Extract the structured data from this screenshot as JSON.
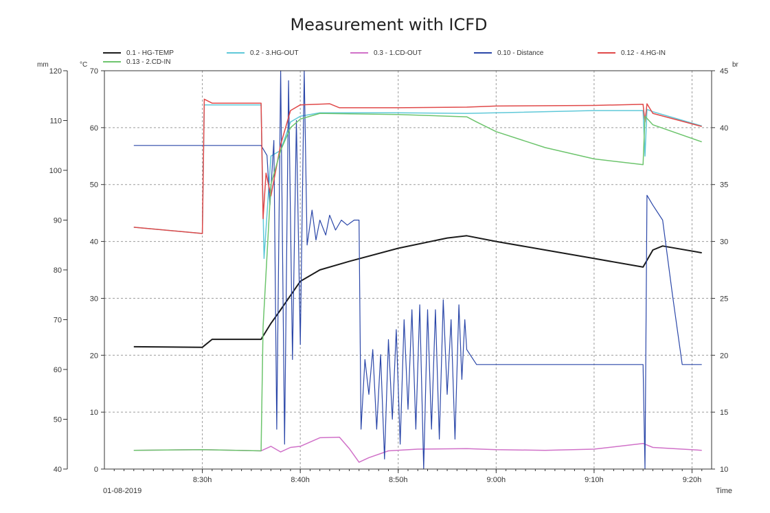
{
  "chart_data": {
    "type": "line",
    "title": "Measurement with ICFD",
    "date_label": "01-08-2019",
    "xlabel": "Time",
    "x_range": [
      "8:20",
      "9:22"
    ],
    "x_ticks": [
      {
        "t": "8:30",
        "label": "8:30h"
      },
      {
        "t": "8:40",
        "label": "8:40h"
      },
      {
        "t": "8:50",
        "label": "8:50h"
      },
      {
        "t": "9:00",
        "label": "9:00h"
      },
      {
        "t": "9:10",
        "label": "9:10h"
      },
      {
        "t": "9:20",
        "label": "9:20h"
      }
    ],
    "axes": {
      "mm": {
        "unit": "mm",
        "ylim": [
          40,
          120
        ],
        "ticks": [
          40,
          50,
          60,
          70,
          80,
          90,
          100,
          110,
          120
        ]
      },
      "degC": {
        "unit": "°C",
        "ylim": [
          0,
          70
        ],
        "ticks": [
          0,
          10,
          20,
          30,
          40,
          50,
          60,
          70
        ]
      },
      "bar": {
        "unit": "br",
        "ylim": [
          10,
          45
        ],
        "ticks": [
          10,
          15,
          20,
          25,
          30,
          35,
          40,
          45
        ]
      }
    },
    "grid": true,
    "legend_position": "top",
    "series": [
      {
        "name": "0.1 - HG-TEMP",
        "color": "#1a1a1a",
        "axis": "degC",
        "width": 2,
        "points": [
          [
            "8:23",
            21.5
          ],
          [
            "8:30",
            21.4
          ],
          [
            "8:31",
            22.8
          ],
          [
            "8:36",
            22.8
          ],
          [
            "8:37",
            25.6
          ],
          [
            "8:38",
            28
          ],
          [
            "8:39",
            30.5
          ],
          [
            "8:40",
            33
          ],
          [
            "8:42",
            35
          ],
          [
            "8:45",
            36.5
          ],
          [
            "8:50",
            38.8
          ],
          [
            "8:55",
            40.6
          ],
          [
            "8:57",
            41
          ],
          [
            "9:00",
            40
          ],
          [
            "9:05",
            38.5
          ],
          [
            "9:10",
            37
          ],
          [
            "9:15",
            35.5
          ],
          [
            "9:16",
            38.5
          ],
          [
            "9:17",
            39.2
          ],
          [
            "9:21",
            38
          ]
        ]
      },
      {
        "name": "0.2 - 3.HG-OUT",
        "color": "#5ec8d8",
        "axis": "degC",
        "width": 1.5,
        "points": [
          [
            "8:23",
            42.5
          ],
          [
            "8:30",
            41.4
          ],
          [
            "8:30.2",
            64
          ],
          [
            "8:36",
            64
          ],
          [
            "8:36.3",
            37
          ],
          [
            "8:37",
            55
          ],
          [
            "8:38",
            56
          ],
          [
            "8:39",
            61
          ],
          [
            "8:40",
            62
          ],
          [
            "8:42",
            62.6
          ],
          [
            "8:50",
            62.6
          ],
          [
            "8:57",
            62.5
          ],
          [
            "9:00",
            62.6
          ],
          [
            "9:10",
            63
          ],
          [
            "9:15",
            63
          ],
          [
            "9:15.2",
            55
          ],
          [
            "9:15.4",
            63.2
          ],
          [
            "9:16",
            62.8
          ],
          [
            "9:21",
            60.3
          ]
        ]
      },
      {
        "name": "0.3 - 1.CD-OUT",
        "color": "#d070c8",
        "axis": "degC",
        "width": 1.5,
        "points": [
          [
            "8:23",
            3.3
          ],
          [
            "8:30",
            3.4
          ],
          [
            "8:36",
            3.2
          ],
          [
            "8:37",
            4
          ],
          [
            "8:38",
            3
          ],
          [
            "8:39",
            3.8
          ],
          [
            "8:40",
            4
          ],
          [
            "8:42",
            5.5
          ],
          [
            "8:44",
            5.6
          ],
          [
            "8:45",
            3.6
          ],
          [
            "8:46",
            1.2
          ],
          [
            "8:47",
            2
          ],
          [
            "8:49",
            3.2
          ],
          [
            "8:52",
            3.5
          ],
          [
            "8:57",
            3.6
          ],
          [
            "9:00",
            3.4
          ],
          [
            "9:05",
            3.3
          ],
          [
            "9:10",
            3.5
          ],
          [
            "9:15",
            4.5
          ],
          [
            "9:16",
            3.8
          ],
          [
            "9:21",
            3.3
          ]
        ]
      },
      {
        "name": "0.10 - Distance",
        "color": "#2a46a8",
        "axis": "mm",
        "width": 1.2,
        "points": [
          [
            "8:23",
            105
          ],
          [
            "8:35",
            105
          ],
          [
            "8:36",
            105
          ],
          [
            "8:36.6",
            103
          ],
          [
            "8:36.9",
            93
          ],
          [
            "8:37.3",
            106
          ],
          [
            "8:37.6",
            48
          ],
          [
            "8:38",
            120
          ],
          [
            "8:38.4",
            45
          ],
          [
            "8:38.8",
            118
          ],
          [
            "8:39.2",
            62
          ],
          [
            "8:39.6",
            110
          ],
          [
            "8:40",
            65
          ],
          [
            "8:40.4",
            120
          ],
          [
            "8:40.7",
            85
          ],
          [
            "8:41.2",
            92
          ],
          [
            "8:41.6",
            86
          ],
          [
            "8:42",
            90
          ],
          [
            "8:42.6",
            87
          ],
          [
            "8:43",
            91
          ],
          [
            "8:43.6",
            88
          ],
          [
            "8:44.2",
            90
          ],
          [
            "8:44.8",
            89
          ],
          [
            "8:45.5",
            90
          ],
          [
            "8:46",
            90
          ],
          [
            "8:46.2",
            48
          ],
          [
            "8:46.6",
            62
          ],
          [
            "8:47",
            55
          ],
          [
            "8:47.4",
            64
          ],
          [
            "8:47.8",
            48
          ],
          [
            "8:48.2",
            63
          ],
          [
            "8:48.6",
            42
          ],
          [
            "8:49",
            66
          ],
          [
            "8:49.4",
            50
          ],
          [
            "8:49.8",
            68
          ],
          [
            "8:50.2",
            45
          ],
          [
            "8:50.6",
            70
          ],
          [
            "8:51",
            52
          ],
          [
            "8:51.4",
            72
          ],
          [
            "8:51.8",
            48
          ],
          [
            "8:52.2",
            73
          ],
          [
            "8:52.6",
            40
          ],
          [
            "8:53",
            72
          ],
          [
            "8:53.4",
            48
          ],
          [
            "8:53.8",
            72
          ],
          [
            "8:54.2",
            46
          ],
          [
            "8:54.6",
            74
          ],
          [
            "8:55",
            55
          ],
          [
            "8:55.4",
            70
          ],
          [
            "8:55.8",
            46
          ],
          [
            "8:56.2",
            73
          ],
          [
            "8:56.5",
            58
          ],
          [
            "8:56.8",
            70
          ],
          [
            "8:57",
            64
          ],
          [
            "8:58",
            61
          ],
          [
            "9:00",
            61
          ],
          [
            "9:10",
            61
          ],
          [
            "9:15",
            61
          ],
          [
            "9:15.2",
            40
          ],
          [
            "9:15.4",
            95
          ],
          [
            "9:16",
            93
          ],
          [
            "9:17",
            90
          ],
          [
            "9:18",
            75
          ],
          [
            "9:19",
            61
          ],
          [
            "9:21",
            61
          ]
        ]
      },
      {
        "name": "0.12 - 4.HG-IN",
        "color": "#e04848",
        "axis": "degC",
        "width": 1.5,
        "points": [
          [
            "8:23",
            42.5
          ],
          [
            "8:30",
            41.4
          ],
          [
            "8:30.2",
            65
          ],
          [
            "8:31",
            64.3
          ],
          [
            "8:36",
            64.3
          ],
          [
            "8:36.2",
            44
          ],
          [
            "8:36.5",
            52
          ],
          [
            "8:37",
            48
          ],
          [
            "8:38",
            57
          ],
          [
            "8:39",
            63
          ],
          [
            "8:40",
            64
          ],
          [
            "8:43",
            64.2
          ],
          [
            "8:44",
            63.5
          ],
          [
            "8:50",
            63.5
          ],
          [
            "8:57",
            63.6
          ],
          [
            "9:00",
            63.8
          ],
          [
            "9:10",
            63.9
          ],
          [
            "9:15",
            64.1
          ],
          [
            "9:15.2",
            61
          ],
          [
            "9:15.4",
            64.2
          ],
          [
            "9:16",
            62.5
          ],
          [
            "9:21",
            60.2
          ]
        ]
      },
      {
        "name": "0.13 - 2.CD-IN",
        "color": "#6cc46c",
        "axis": "degC",
        "width": 1.5,
        "points": [
          [
            "8:23",
            3.3
          ],
          [
            "8:30",
            3.4
          ],
          [
            "8:36",
            3.2
          ],
          [
            "8:36.2",
            25
          ],
          [
            "8:37",
            50
          ],
          [
            "8:38",
            56
          ],
          [
            "8:39",
            60
          ],
          [
            "8:40",
            61.5
          ],
          [
            "8:42",
            62.5
          ],
          [
            "8:50",
            62.3
          ],
          [
            "8:57",
            61.9
          ],
          [
            "8:58",
            61
          ],
          [
            "9:00",
            59.3
          ],
          [
            "9:05",
            56.5
          ],
          [
            "9:10",
            54.5
          ],
          [
            "9:15",
            53.5
          ],
          [
            "9:15.2",
            62
          ],
          [
            "9:16",
            60.5
          ],
          [
            "9:21",
            57.5
          ]
        ]
      }
    ]
  }
}
